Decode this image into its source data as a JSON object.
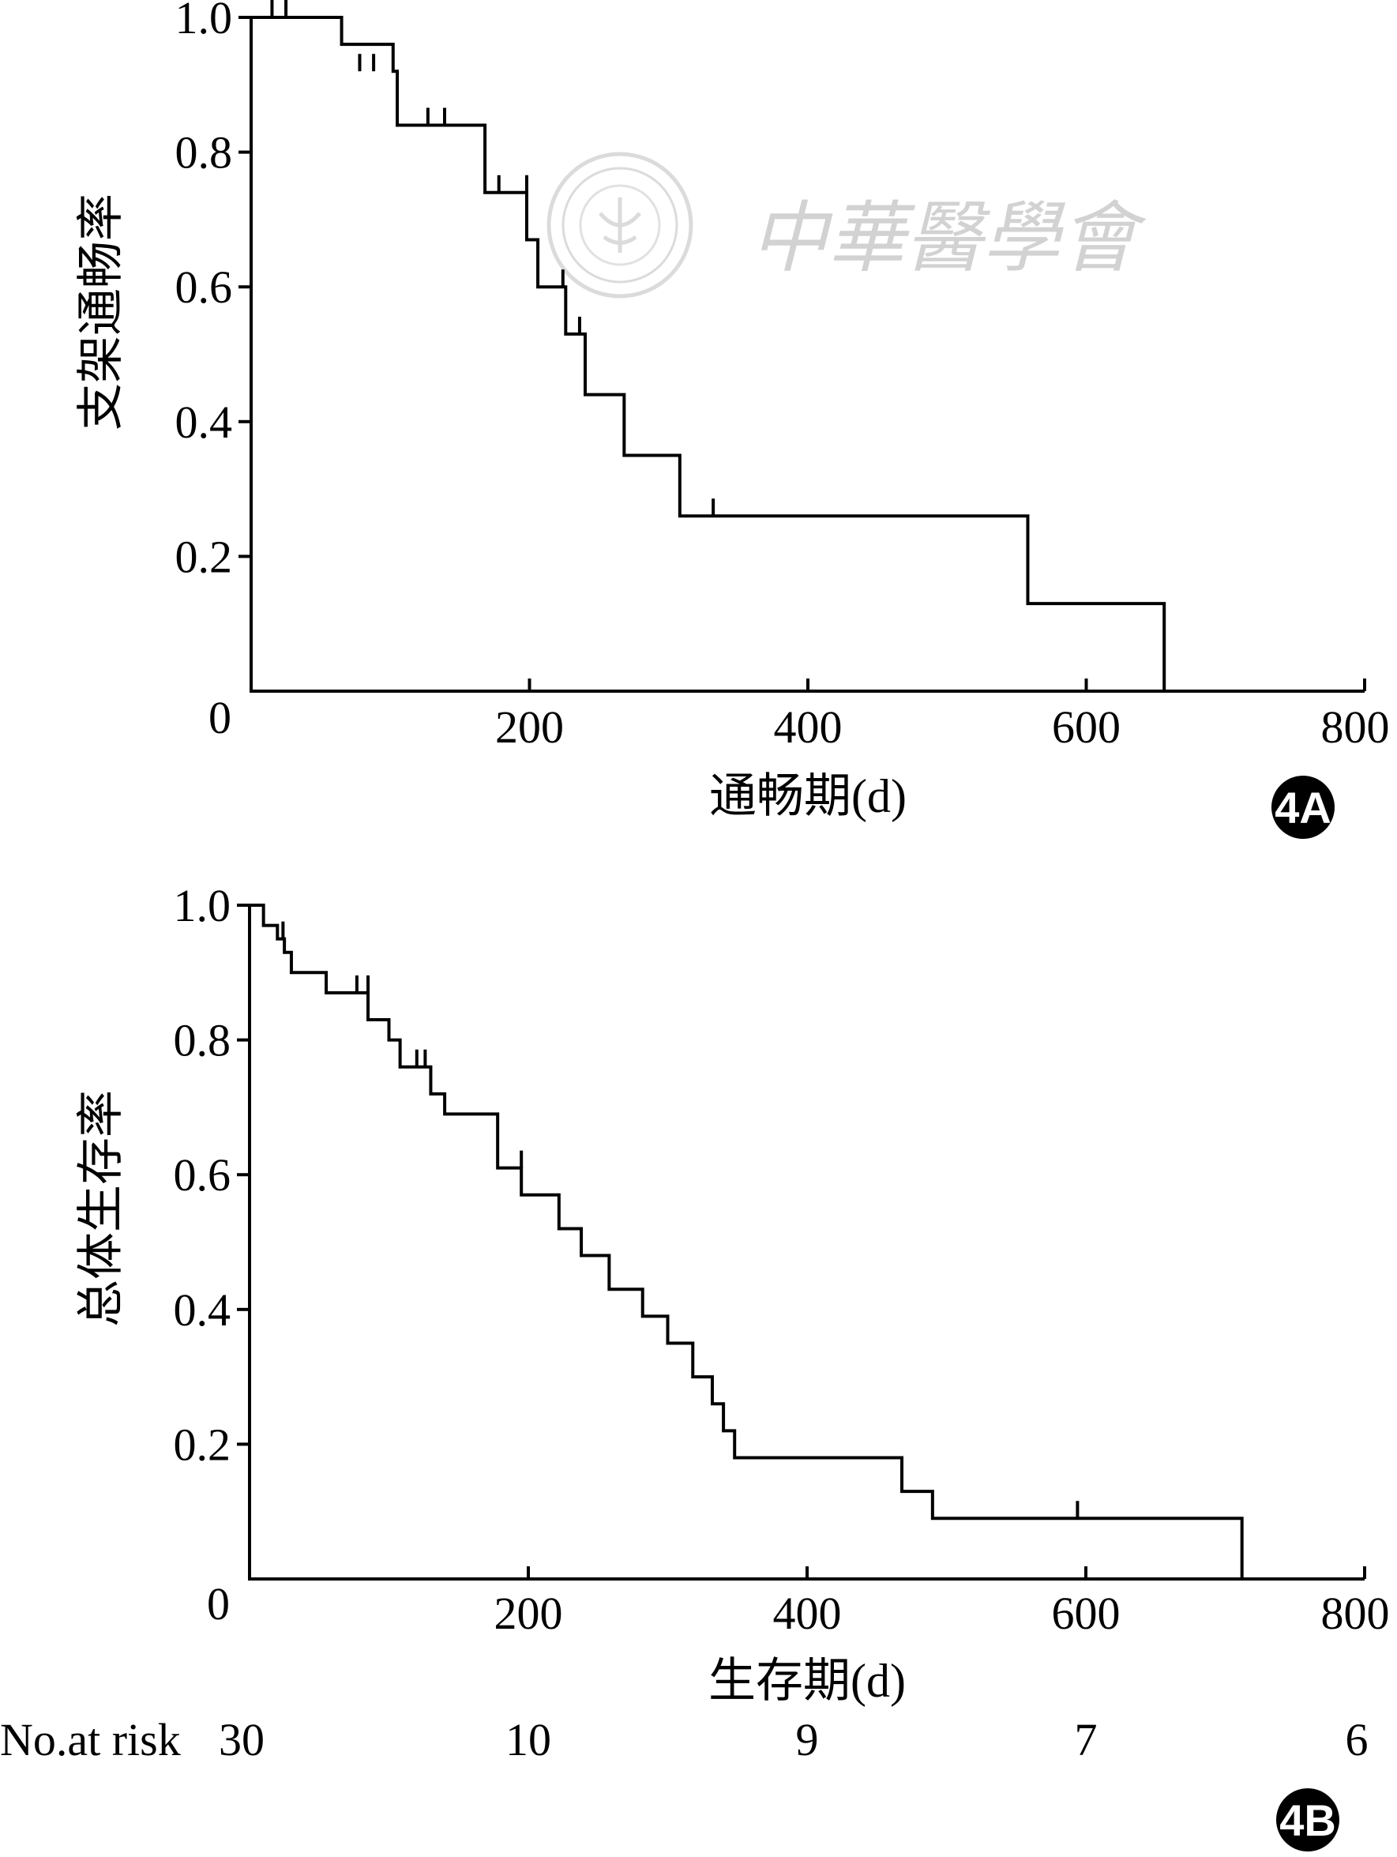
{
  "watermark": {
    "text": "中華醫學會",
    "seal_icon": "society-seal-icon"
  },
  "chart_data": [
    {
      "id": "4A",
      "type": "line",
      "step": "post",
      "xlabel": "通畅期(d)",
      "ylabel": "支架通畅率",
      "xlim": [
        0,
        800
      ],
      "ylim": [
        0,
        1.0
      ],
      "xticks": [
        0,
        200,
        400,
        600,
        800
      ],
      "xtick_labels": [
        "0",
        "200",
        "400",
        "600",
        "800"
      ],
      "yticks": [
        0.2,
        0.4,
        0.6,
        0.8,
        1.0
      ],
      "ytick_labels": [
        "0.2",
        "0.4",
        "0.6",
        "0.8",
        "1.0"
      ],
      "badge": "4A",
      "series": [
        {
          "x": [
            0,
            57,
            65,
            102,
            105,
            168,
            198,
            206,
            226,
            240,
            268,
            308,
            558,
            656,
            656
          ],
          "y": [
            1.0,
            1.0,
            0.96,
            0.92,
            0.84,
            0.74,
            0.67,
            0.6,
            0.53,
            0.44,
            0.35,
            0.26,
            0.13,
            0.13,
            0.0
          ],
          "censored": [
            {
              "x": 15,
              "y": 1.0
            },
            {
              "x": 25,
              "y": 1.0
            },
            {
              "x": 78,
              "y": 0.92
            },
            {
              "x": 88,
              "y": 0.92
            },
            {
              "x": 127,
              "y": 0.84
            },
            {
              "x": 139,
              "y": 0.84
            },
            {
              "x": 178,
              "y": 0.74
            },
            {
              "x": 198,
              "y": 0.74
            },
            {
              "x": 224,
              "y": 0.6
            },
            {
              "x": 236,
              "y": 0.53
            },
            {
              "x": 332,
              "y": 0.26
            }
          ]
        }
      ]
    },
    {
      "id": "4B",
      "type": "line",
      "step": "post",
      "xlabel": "生存期(d)",
      "ylabel": "总体生存率",
      "xlim": [
        0,
        800
      ],
      "ylim": [
        0,
        1.0
      ],
      "xticks": [
        0,
        200,
        400,
        600,
        800
      ],
      "xtick_labels": [
        "0",
        "200",
        "400",
        "600",
        "800"
      ],
      "yticks": [
        0.2,
        0.4,
        0.6,
        0.8,
        1.0
      ],
      "ytick_labels": [
        "0.2",
        "0.4",
        "0.6",
        "0.8",
        "1.0"
      ],
      "badge": "4B",
      "risk_table": {
        "label": "No.at risk",
        "times": [
          0,
          200,
          400,
          600,
          800
        ],
        "counts": [
          "30",
          "10",
          "9",
          "7",
          "6"
        ]
      },
      "series": [
        {
          "x": [
            0,
            10,
            20,
            25,
            30,
            55,
            85,
            100,
            108,
            130,
            140,
            178,
            195,
            222,
            238,
            258,
            282,
            300,
            318,
            332,
            340,
            348,
            468,
            490,
            712,
            712
          ],
          "y": [
            1.0,
            0.97,
            0.95,
            0.93,
            0.9,
            0.87,
            0.83,
            0.8,
            0.76,
            0.72,
            0.69,
            0.61,
            0.57,
            0.52,
            0.48,
            0.43,
            0.39,
            0.35,
            0.3,
            0.26,
            0.22,
            0.18,
            0.13,
            0.09,
            0.09,
            0.0
          ],
          "censored": [
            {
              "x": 24,
              "y": 0.95
            },
            {
              "x": 77,
              "y": 0.87
            },
            {
              "x": 85,
              "y": 0.87
            },
            {
              "x": 120,
              "y": 0.76
            },
            {
              "x": 126,
              "y": 0.76
            },
            {
              "x": 195,
              "y": 0.61
            },
            {
              "x": 594,
              "y": 0.09
            }
          ]
        }
      ]
    }
  ]
}
